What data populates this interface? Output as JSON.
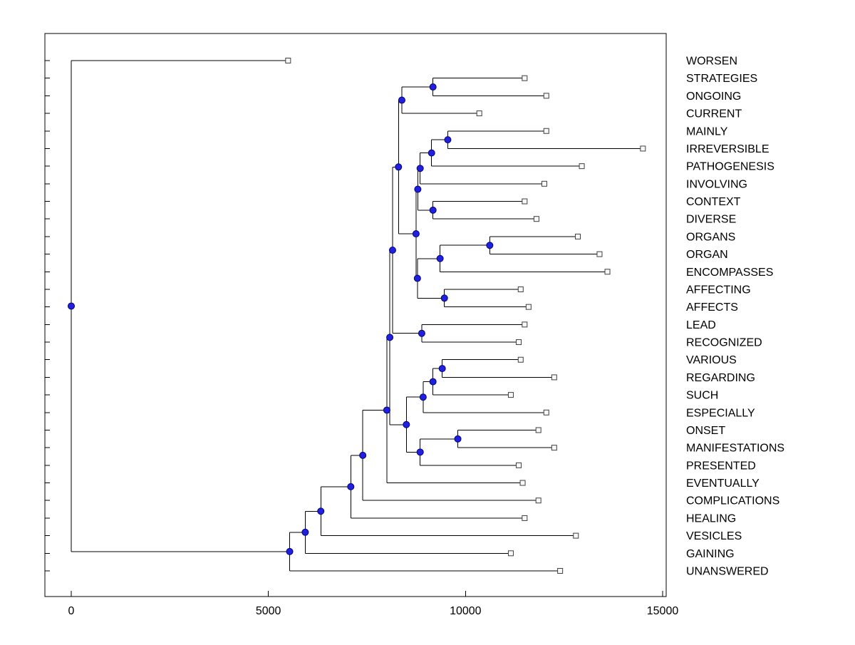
{
  "figure": {
    "background": "#ffffff"
  },
  "chart_data": {
    "type": "dendrogram",
    "orientation": "horizontal",
    "title": "",
    "xlabel": "",
    "ylabel": "",
    "x_axis": {
      "ticks": [
        0,
        5000,
        10000,
        15000
      ],
      "range": [
        0,
        15000
      ],
      "grid": false
    },
    "colors": {
      "branch": "#000000",
      "node_fill": "#2020dd",
      "node_stroke": "#000080",
      "leaf_fill": "#f8f8f8",
      "leaf_stroke": "#404040",
      "axis": "#000000"
    },
    "leaf_labels_in_order": [
      "WORSEN",
      "STRATEGIES",
      "ONGOING",
      "CURRENT",
      "MAINLY",
      "IRREVERSIBLE",
      "PATHOGENESIS",
      "INVOLVING",
      "CONTEXT",
      "DIVERSE",
      "ORGANS",
      "ORGAN",
      "ENCOMPASSES",
      "AFFECTING",
      "AFFECTS",
      "LEAD",
      "RECOGNIZED",
      "VARIOUS",
      "REGARDING",
      "SUCH",
      "ESPECIALLY",
      "ONSET",
      "MANIFESTATIONS",
      "PRESENTED",
      "EVENTUALLY",
      "COMPLICATIONS",
      "HEALING",
      "VESICLES",
      "GAINING",
      "UNANSWERED"
    ],
    "tree": {
      "v": 0,
      "c": [
        {
          "label": "WORSEN",
          "v": 5500
        },
        {
          "v": 5540,
          "c": [
            {
              "v": 5935,
              "c": [
                {
                  "v": 6330,
                  "c": [
                    {
                      "v": 7090,
                      "c": [
                        {
                          "v": 7395,
                          "c": [
                            {
                              "v": 8005,
                              "c": [
                                {
                                  "v": 8080,
                                  "c": [
                                    {
                                      "v": 8150,
                                      "c": [
                                        {
                                          "v": 8300,
                                          "c": [
                                            {
                                              "v": 8385,
                                              "c": [
                                                {
                                                  "v": 9175,
                                                  "c": [
                                                    {
                                                      "label": "STRATEGIES",
                                                      "v": 11500
                                                    },
                                                    {
                                                      "label": "ONGOING",
                                                      "v": 12050
                                                    }
                                                  ]
                                                },
                                                {
                                                  "label": "CURRENT",
                                                  "v": 10350
                                                }
                                              ]
                                            },
                                            {
                                              "v": 8745,
                                              "c": [
                                                {
                                                  "v": 8790,
                                                  "c": [
                                                    {
                                                      "v": 8850,
                                                      "c": [
                                                        {
                                                          "v": 9140,
                                                          "c": [
                                                            {
                                                              "v": 9550,
                                                              "c": [
                                                                {
                                                                  "label": "MAINLY",
                                                                  "v": 12050
                                                                },
                                                                {
                                                                  "label": "IRREVERSIBLE",
                                                                  "v": 14500
                                                                }
                                                              ]
                                                            },
                                                            {
                                                              "label": "PATHOGENESIS",
                                                              "v": 12950
                                                            }
                                                          ]
                                                        },
                                                        {
                                                          "label": "INVOLVING",
                                                          "v": 12000
                                                        }
                                                      ]
                                                    },
                                                    {
                                                      "v": 9175,
                                                      "c": [
                                                        {
                                                          "label": "CONTEXT",
                                                          "v": 11500
                                                        },
                                                        {
                                                          "label": "DIVERSE",
                                                          "v": 11800
                                                        }
                                                      ]
                                                    }
                                                  ]
                                                },
                                                {
                                                  "v": 8780,
                                                  "c": [
                                                    {
                                                      "v": 9355,
                                                      "c": [
                                                        {
                                                          "v": 10615,
                                                          "c": [
                                                            {
                                                              "label": "ORGANS",
                                                              "v": 12850
                                                            },
                                                            {
                                                              "label": "ORGAN",
                                                              "v": 13400
                                                            }
                                                          ]
                                                        },
                                                        {
                                                          "label": "ENCOMPASSES",
                                                          "v": 13600
                                                        }
                                                      ]
                                                    },
                                                    {
                                                      "v": 9465,
                                                      "c": [
                                                        {
                                                          "label": "AFFECTING",
                                                          "v": 11400
                                                        },
                                                        {
                                                          "label": "AFFECTS",
                                                          "v": 11600
                                                        }
                                                      ]
                                                    }
                                                  ]
                                                }
                                              ]
                                            }
                                          ]
                                        },
                                        {
                                          "v": 8890,
                                          "c": [
                                            {
                                              "label": "LEAD",
                                              "v": 11500
                                            },
                                            {
                                              "label": "RECOGNIZED",
                                              "v": 11350
                                            }
                                          ]
                                        }
                                      ]
                                    },
                                    {
                                      "v": 8500,
                                      "c": [
                                        {
                                          "v": 8925,
                                          "c": [
                                            {
                                              "v": 9175,
                                              "c": [
                                                {
                                                  "v": 9410,
                                                  "c": [
                                                    {
                                                      "label": "VARIOUS",
                                                      "v": 11400
                                                    },
                                                    {
                                                      "label": "REGARDING",
                                                      "v": 12250
                                                    }
                                                  ]
                                                },
                                                {
                                                  "label": "SUCH",
                                                  "v": 11150
                                                }
                                              ]
                                            },
                                            {
                                              "label": "ESPECIALLY",
                                              "v": 12050
                                            }
                                          ]
                                        },
                                        {
                                          "v": 8850,
                                          "c": [
                                            {
                                              "v": 9805,
                                              "c": [
                                                {
                                                  "label": "ONSET",
                                                  "v": 11850
                                                },
                                                {
                                                  "label": "MANIFESTATIONS",
                                                  "v": 12250
                                                }
                                              ]
                                            },
                                            {
                                              "label": "PRESENTED",
                                              "v": 11350
                                            }
                                          ]
                                        }
                                      ]
                                    }
                                  ]
                                },
                                {
                                  "label": "EVENTUALLY",
                                  "v": 11450
                                }
                              ]
                            },
                            {
                              "label": "COMPLICATIONS",
                              "v": 11850
                            }
                          ]
                        },
                        {
                          "label": "HEALING",
                          "v": 11500
                        }
                      ]
                    },
                    {
                      "label": "VESICLES",
                      "v": 12800
                    }
                  ]
                },
                {
                  "label": "GAINING",
                  "v": 11150
                }
              ]
            },
            {
              "label": "UNANSWERED",
              "v": 12400
            }
          ]
        }
      ]
    }
  }
}
